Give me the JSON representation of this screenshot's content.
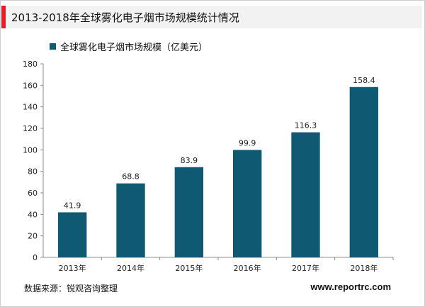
{
  "page": {
    "title": "2013-2018年全球雾化电子烟市场规模统计情况",
    "source": "数据来源：锐观咨询整理",
    "site": "www.reportrc.com"
  },
  "colors": {
    "bar": "#0f5a72",
    "title_accent": "#e31e24",
    "title_bg": "#f2f2f2"
  },
  "chart_data": {
    "type": "bar",
    "categories": [
      "2013年",
      "2014年",
      "2015年",
      "2016年",
      "2017年",
      "2018年"
    ],
    "series": [
      {
        "name": "全球雾化电子烟市场规模（亿美元）",
        "values": [
          41.9,
          68.8,
          83.9,
          99.9,
          116.3,
          158.4
        ]
      }
    ],
    "value_labels": [
      "41.9",
      "68.8",
      "83.9",
      "99.9",
      "116.3",
      "158.4"
    ],
    "title": "2013-2018年全球雾化电子烟市场规模统计情况",
    "xlabel": "",
    "ylabel": "",
    "ylim": [
      0,
      180
    ],
    "yticks": [
      0,
      20,
      40,
      60,
      80,
      100,
      120,
      140,
      160,
      180
    ],
    "ytick_labels": [
      "0",
      "20",
      "40",
      "60",
      "80",
      "100",
      "120",
      "140",
      "160",
      "180"
    ],
    "grid": false,
    "legend": "top-left"
  }
}
